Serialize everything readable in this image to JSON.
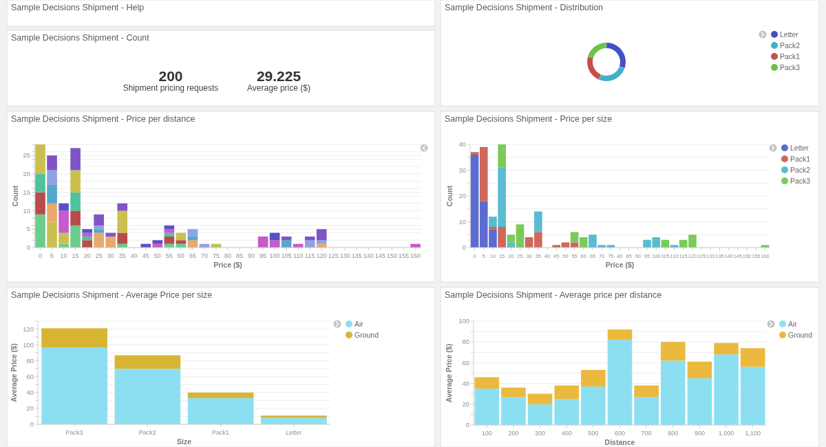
{
  "chart_data": [
    {
      "type": "other",
      "title": "Sample Decisions Shipment - Help"
    },
    {
      "type": "donut",
      "title": "Sample Decisions Shipment - Distribution",
      "categories": [
        "Letter",
        "Pack2",
        "Pack1",
        "Pack3"
      ],
      "values": [
        30.5,
        26,
        23,
        20.5
      ],
      "colors": [
        "#4352c2",
        "#3fb2c9",
        "#c2504f",
        "#6bc24a"
      ],
      "legend": "right"
    },
    {
      "type": "other",
      "title": "Sample Decisions Shipment - Count",
      "categories": [
        "Shipment pricing requests",
        "Average price ($)"
      ],
      "values": [
        200,
        29.225
      ],
      "data_labels": true
    },
    {
      "type": "bar",
      "title": "Sample Decisions Shipment - Price per distance",
      "xlabel": "Price ($)",
      "ylabel": "Count",
      "stacked": true,
      "grid": "y",
      "categories": [
        "0",
        "5",
        "10",
        "15",
        "20",
        "25",
        "30",
        "35",
        "40",
        "45",
        "50",
        "55",
        "60",
        "65",
        "70",
        "75",
        "80",
        "85",
        "90",
        "95",
        "100",
        "105",
        "110",
        "115",
        "120",
        "125",
        "130",
        "135",
        "140",
        "145",
        "150",
        "155",
        "160"
      ],
      "ylim": [
        0,
        28
      ],
      "yticks": [
        0,
        {
          "value": 2,
          "label": null
        },
        {
          "value": 4,
          "label": null
        },
        5,
        {
          "value": 6,
          "label": null
        },
        {
          "value": 8,
          "label": null
        },
        10,
        {
          "value": 12,
          "label": null
        },
        {
          "value": 14,
          "label": null
        },
        15,
        {
          "value": 16,
          "label": null
        },
        {
          "value": 18,
          "label": null
        },
        20,
        {
          "value": 22,
          "label": null
        },
        {
          "value": 24,
          "label": null
        },
        25,
        {
          "value": 26,
          "label": null
        },
        {
          "value": 28,
          "label": null
        }
      ],
      "series": [
        {
          "color": "#6ccc8e",
          "values": [
            9,
            null,
            1,
            6,
            null,
            null,
            null,
            1,
            null,
            null,
            null,
            1,
            1,
            null,
            null,
            null,
            null,
            null,
            null,
            null,
            null,
            null,
            null,
            null,
            null,
            null,
            null,
            null,
            null,
            null,
            null,
            null,
            null
          ]
        },
        {
          "color": "#b94b4a",
          "values": [
            6,
            null,
            null,
            4,
            2,
            null,
            null,
            3,
            null,
            null,
            null,
            2,
            1,
            null,
            null,
            null,
            null,
            null,
            null,
            null,
            null,
            null,
            null,
            null,
            null,
            null,
            null,
            null,
            null,
            null,
            null,
            null,
            null
          ]
        },
        {
          "color": "#4fc39c",
          "values": [
            5,
            null,
            null,
            5,
            1,
            null,
            null,
            null,
            null,
            null,
            null,
            1,
            null,
            null,
            null,
            null,
            null,
            null,
            null,
            null,
            null,
            null,
            null,
            null,
            null,
            null,
            null,
            null,
            null,
            null,
            null,
            null,
            null
          ]
        },
        {
          "color": "#cbbf50",
          "values": [
            8,
            7,
            3,
            6,
            null,
            null,
            null,
            6,
            null,
            null,
            null,
            null,
            2,
            null,
            null,
            null,
            null,
            null,
            null,
            null,
            null,
            null,
            null,
            null,
            null,
            null,
            null,
            null,
            null,
            null,
            null,
            null,
            null
          ]
        },
        {
          "color": "#b6c74c",
          "values": [
            null,
            null,
            null,
            null,
            null,
            null,
            null,
            null,
            null,
            null,
            null,
            null,
            null,
            null,
            null,
            1,
            null,
            null,
            null,
            null,
            null,
            null,
            null,
            null,
            null,
            null,
            null,
            null,
            null,
            null,
            null,
            null,
            null
          ]
        },
        {
          "color": "#e8a96c",
          "values": [
            null,
            5,
            null,
            null,
            null,
            4,
            3,
            null,
            null,
            null,
            null,
            null,
            null,
            2,
            null,
            null,
            null,
            null,
            null,
            null,
            null,
            null,
            null,
            null,
            1,
            null,
            null,
            null,
            null,
            null,
            null,
            null,
            null
          ]
        },
        {
          "color": "#54a8c9",
          "values": [
            null,
            5,
            null,
            null,
            null,
            1,
            null,
            null,
            null,
            null,
            null,
            null,
            null,
            1,
            null,
            null,
            null,
            null,
            null,
            null,
            null,
            2,
            null,
            null,
            null,
            null,
            null,
            null,
            null,
            null,
            null,
            null,
            null
          ]
        },
        {
          "color": "#8ea2e4",
          "values": [
            null,
            4,
            null,
            null,
            null,
            1,
            null,
            null,
            null,
            null,
            null,
            null,
            null,
            2,
            1,
            null,
            null,
            null,
            null,
            null,
            null,
            null,
            null,
            2,
            1,
            null,
            null,
            null,
            null,
            null,
            null,
            null,
            null
          ]
        },
        {
          "color": "#7f54c6",
          "values": [
            null,
            4,
            null,
            6,
            null,
            3,
            1,
            2,
            null,
            null,
            null,
            null,
            null,
            null,
            null,
            null,
            null,
            null,
            null,
            null,
            null,
            1,
            null,
            1,
            3,
            null,
            null,
            null,
            null,
            null,
            null,
            null,
            null
          ]
        },
        {
          "color": "#c65bc9",
          "values": [
            null,
            null,
            6,
            null,
            1,
            null,
            null,
            null,
            null,
            null,
            1,
            1,
            null,
            null,
            null,
            null,
            null,
            null,
            null,
            3,
            2,
            null,
            1,
            null,
            null,
            null,
            null,
            null,
            null,
            null,
            null,
            null,
            1
          ]
        },
        {
          "color": "#5a4fcb",
          "values": [
            null,
            null,
            2,
            null,
            1,
            null,
            null,
            null,
            null,
            1,
            1,
            1,
            null,
            null,
            null,
            null,
            null,
            null,
            null,
            null,
            2,
            null,
            null,
            null,
            null,
            null,
            null,
            null,
            null,
            null,
            null,
            null,
            null
          ]
        }
      ]
    },
    {
      "type": "bar",
      "title": "Sample Decisions Shipment - Price per size",
      "xlabel": "Price ($)",
      "ylabel": "Count",
      "stacked": true,
      "grid": "y",
      "legend": "right",
      "categories": [
        "0",
        "5",
        "10",
        "15",
        "20",
        "25",
        "30",
        "35",
        "40",
        "45",
        "50",
        "55",
        "60",
        "65",
        "70",
        "75",
        "80",
        "85",
        "90",
        "95",
        "100",
        "105",
        "110",
        "115",
        "120",
        "125",
        "130",
        "135",
        "140",
        "145",
        "150",
        "155",
        "160"
      ],
      "ylim": [
        0,
        40
      ],
      "yticks": [
        0,
        {
          "value": 5,
          "label": null
        },
        10,
        {
          "value": 15,
          "label": null
        },
        20,
        {
          "value": 25,
          "label": null
        },
        30,
        {
          "value": 35,
          "label": null
        },
        40
      ],
      "series": [
        {
          "name": "Letter",
          "color": "#5b6bd0",
          "values": [
            36,
            18,
            7,
            null,
            null,
            null,
            null,
            null,
            null,
            null,
            null,
            null,
            null,
            null,
            null,
            null,
            null,
            null,
            null,
            null,
            null,
            null,
            null,
            null,
            null,
            null,
            null,
            null,
            null,
            null,
            null,
            null,
            null
          ]
        },
        {
          "name": "Pack1",
          "color": "#d0675a",
          "values": [
            1,
            21,
            1,
            8,
            null,
            null,
            4,
            6,
            null,
            1,
            2,
            2,
            null,
            null,
            null,
            null,
            null,
            null,
            null,
            null,
            null,
            null,
            null,
            null,
            null,
            null,
            null,
            null,
            null,
            null,
            null,
            null,
            null
          ]
        },
        {
          "name": "Pack2",
          "color": "#59bcd0",
          "values": [
            null,
            null,
            4,
            23,
            2,
            null,
            null,
            8,
            null,
            null,
            null,
            null,
            null,
            5,
            1,
            1,
            null,
            null,
            null,
            3,
            4,
            null,
            1,
            null,
            null,
            null,
            null,
            null,
            null,
            null,
            null,
            null,
            null
          ]
        },
        {
          "name": "Pack3",
          "color": "#7acb5a",
          "values": [
            null,
            null,
            null,
            9,
            3,
            9,
            null,
            null,
            null,
            null,
            null,
            4,
            4,
            null,
            null,
            null,
            null,
            null,
            null,
            null,
            null,
            3,
            null,
            3,
            5,
            null,
            null,
            null,
            null,
            null,
            null,
            null,
            1
          ]
        }
      ]
    },
    {
      "type": "bar",
      "title": "Sample Decisions Shipment - Average Price per size",
      "xlabel": "Size",
      "ylabel": "Average Price ($)",
      "stacked": true,
      "grid": "y",
      "legend": "right",
      "categories": [
        "Pack3",
        "Pack2",
        "Pack1",
        "Letter"
      ],
      "ylim": [
        0,
        130
      ],
      "yticks": [
        0,
        {
          "value": 10,
          "label": null
        },
        20,
        {
          "value": 30,
          "label": null
        },
        40,
        {
          "value": 50,
          "label": null
        },
        60,
        {
          "value": 70,
          "label": null
        },
        80,
        {
          "value": 90,
          "label": null
        },
        100,
        {
          "value": 110,
          "label": null
        },
        120,
        {
          "value": 130,
          "label": null
        }
      ],
      "series": [
        {
          "name": "Air",
          "color": "#8cdff0",
          "values": [
            97,
            70,
            33,
            8
          ]
        },
        {
          "name": "Ground",
          "color": "#d8b433",
          "values": [
            24,
            17,
            7,
            3
          ]
        }
      ]
    },
    {
      "type": "bar",
      "title": "Sample Decisions Shipment - Average price per distance",
      "xlabel": "Distance",
      "ylabel": "Average Price ($)",
      "stacked": true,
      "grid": "y",
      "legend": "right",
      "categories": [
        "100",
        "200",
        "300",
        "400",
        "500",
        "600",
        "700",
        "800",
        "900",
        "1,000",
        "1,100"
      ],
      "ylim": [
        0,
        100
      ],
      "yticks": [
        0,
        {
          "value": 10,
          "label": null
        },
        20,
        {
          "value": 30,
          "label": null
        },
        40,
        {
          "value": 50,
          "label": null
        },
        60,
        {
          "value": 70,
          "label": null
        },
        80,
        {
          "value": 90,
          "label": null
        },
        100
      ],
      "series": [
        {
          "name": "Air",
          "color": "#8cdff0",
          "values": [
            35,
            27,
            20,
            25,
            37,
            82,
            27,
            62,
            45,
            68,
            56
          ]
        },
        {
          "name": "Ground",
          "color": "#ebb93d",
          "values": [
            11,
            9,
            10,
            13,
            16,
            10,
            11,
            18,
            16,
            11,
            18
          ]
        }
      ]
    }
  ]
}
